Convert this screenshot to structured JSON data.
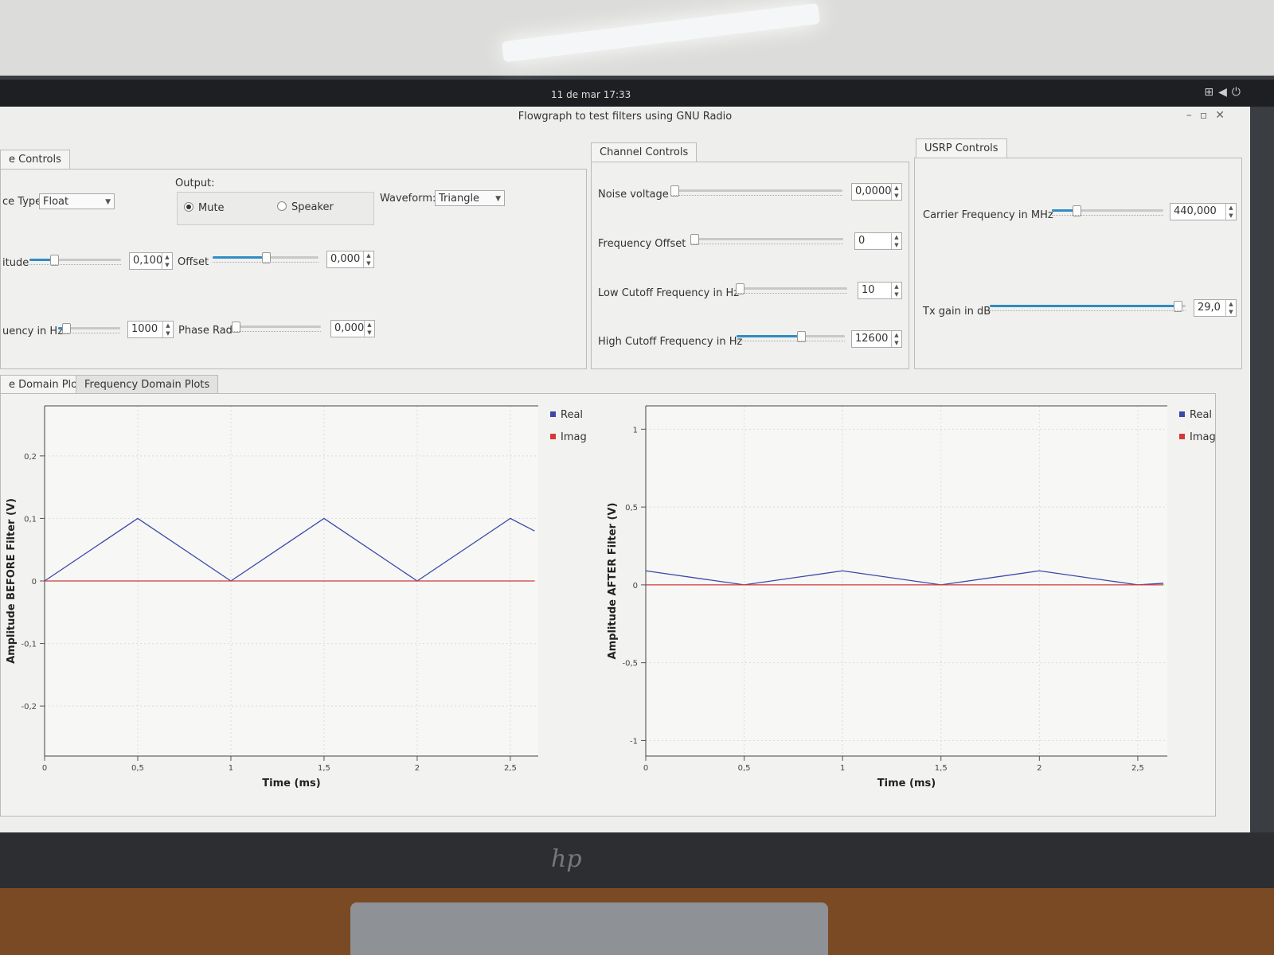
{
  "topbar": {
    "clock": "11 de mar  17:33",
    "icons": [
      "network-icon",
      "volume-icon",
      "power-icon"
    ]
  },
  "window": {
    "title": "Flowgraph to test filters using GNU Radio",
    "buttons": [
      "minimize-icon",
      "restore-icon",
      "close-icon"
    ]
  },
  "source_controls": {
    "tab_label": "e Controls",
    "type_label": "ce Type:",
    "type_value": "Float",
    "output_label": "Output:",
    "output_options": [
      "Mute",
      "Speaker"
    ],
    "output_selected": "Mute",
    "waveform_label": "Waveform:",
    "waveform_value": "Triangle",
    "amplitude_label": "itude",
    "amplitude_value": "0,100",
    "amplitude_level": 0.25,
    "offset_label": "Offset",
    "offset_value": "0,000",
    "offset_level": 0.5,
    "frequency_label": "uency in Hz",
    "frequency_value": "1000",
    "frequency_level": 0.08,
    "phase_label": "Phase Rad",
    "phase_value": "0,000",
    "phase_level": 0.0
  },
  "channel_controls": {
    "tab_label": "Channel Controls",
    "noise_label": "Noise voltage",
    "noise_value": "0,0000",
    "noise_level": 0.0,
    "freq_offset_label": "Frequency Offset",
    "freq_offset_value": "0",
    "freq_offset_level": 0.0,
    "low_cutoff_label": "Low Cutoff Frequency in Hz",
    "low_cutoff_value": "10",
    "low_cutoff_level": 0.0,
    "high_cutoff_label": "High Cutoff Frequency in Hz",
    "high_cutoff_value": "12600",
    "high_cutoff_level": 0.6
  },
  "usrp_controls": {
    "tab_label": "USRP Controls",
    "carrier_label": "Carrier Frequency in MHz",
    "carrier_value": "440,000",
    "carrier_level": 0.2,
    "gain_label": "Tx gain in dB",
    "gain_value": "29,0",
    "gain_level": 0.98
  },
  "plot_tabs": [
    "e Domain Plots",
    "Frequency Domain Plots"
  ],
  "chart_data": [
    {
      "type": "line",
      "ylabel": "Amplitude BEFORE Filter (V)",
      "xlabel": "Time (ms)",
      "xlim": [
        0,
        2.65
      ],
      "ylim": [
        -0.28,
        0.28
      ],
      "xticks": [
        "0",
        "0,5",
        "1",
        "1,5",
        "2",
        "2,5"
      ],
      "xtick_values": [
        0,
        0.5,
        1,
        1.5,
        2,
        2.5
      ],
      "yticks": [
        "0,2",
        "0,1",
        "0",
        "-0,1",
        "-0,2"
      ],
      "ytick_values": [
        0.2,
        0.1,
        0,
        -0.1,
        -0.2
      ],
      "legend": [
        "Real",
        "Imag"
      ],
      "series": [
        {
          "name": "Real",
          "color": "#3b48a8",
          "x": [
            0,
            0.5,
            1,
            1.5,
            2,
            2.5,
            2.63
          ],
          "y": [
            0,
            0.1,
            0,
            0.1,
            0,
            0.1,
            0.08
          ]
        },
        {
          "name": "Imag",
          "color": "#d23a3a",
          "x": [
            0,
            2.63
          ],
          "y": [
            0,
            0
          ]
        }
      ]
    },
    {
      "type": "line",
      "ylabel": "Amplitude AFTER Filter (V)",
      "xlabel": "Time (ms)",
      "xlim": [
        0,
        2.65
      ],
      "ylim": [
        -1.1,
        1.15
      ],
      "xticks": [
        "0",
        "0,5",
        "1",
        "1,5",
        "2",
        "2,5"
      ],
      "xtick_values": [
        0,
        0.5,
        1,
        1.5,
        2,
        2.5
      ],
      "yticks": [
        "1",
        "0,5",
        "0",
        "-0,5",
        "-1"
      ],
      "ytick_values": [
        1,
        0.5,
        0,
        -0.5,
        -1
      ],
      "legend": [
        "Real",
        "Imag"
      ],
      "series": [
        {
          "name": "Real",
          "color": "#3b48a8",
          "x": [
            0,
            0.5,
            1,
            1.5,
            2,
            2.5,
            2.63
          ],
          "y": [
            0.09,
            0,
            0.09,
            0,
            0.09,
            0,
            0.01
          ]
        },
        {
          "name": "Imag",
          "color": "#d23a3a",
          "x": [
            0,
            2.63
          ],
          "y": [
            0,
            0
          ]
        }
      ]
    }
  ]
}
